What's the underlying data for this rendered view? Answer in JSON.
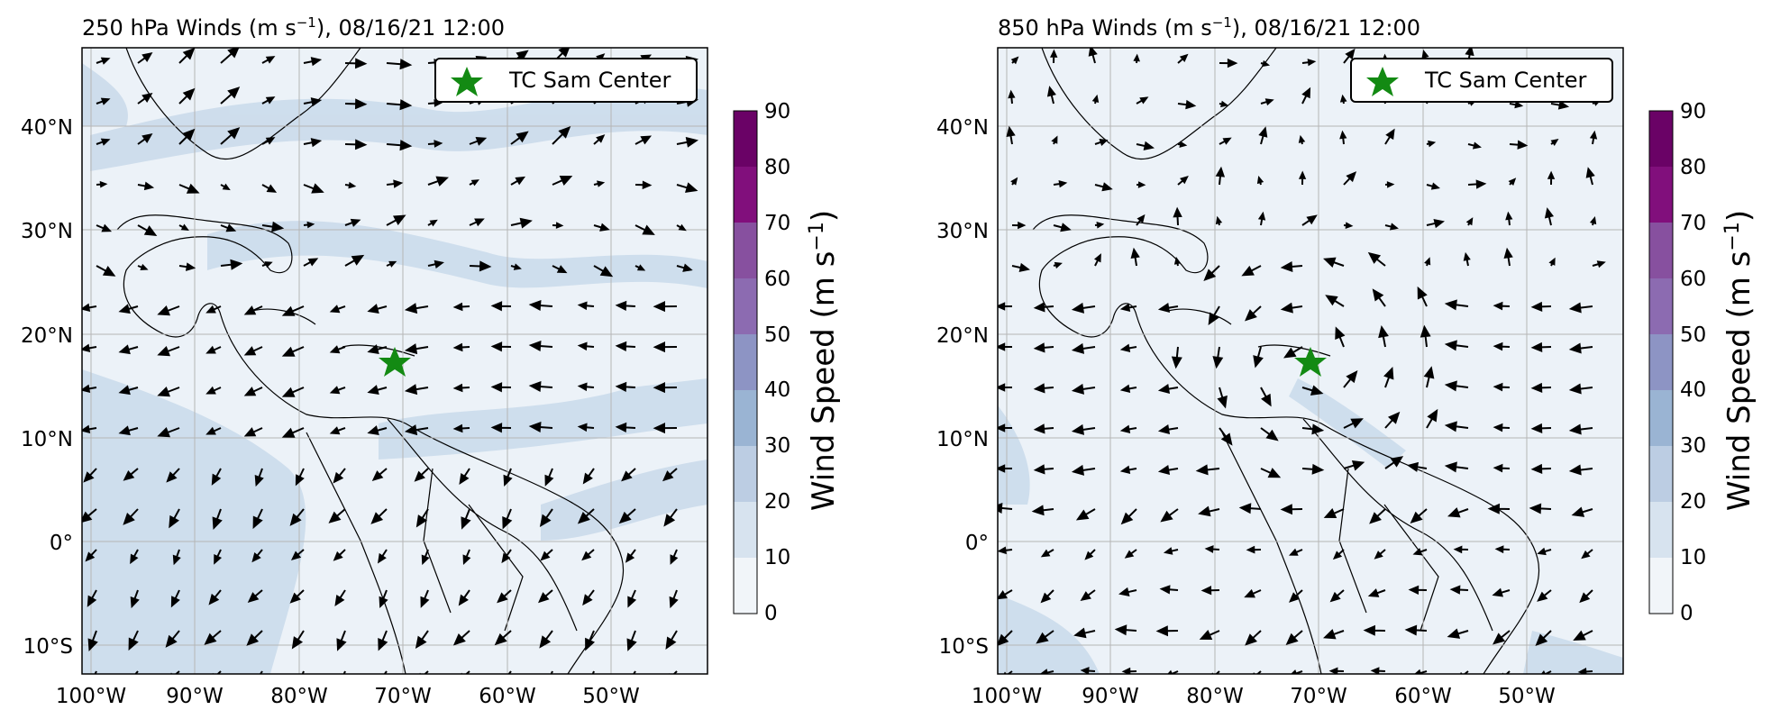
{
  "panels": [
    {
      "id": "upper",
      "title_prefix": "250 hPa Winds (m s",
      "title_sup": "−1",
      "title_suffix": "), 08/16/21 12:00",
      "level": "250 hPa",
      "legend_label": "TC Sam Center",
      "center": {
        "lon": -71,
        "lat": 17.5
      },
      "colorbar_label_main": "Wind Speed (m s",
      "colorbar_label_sup": "−1",
      "colorbar_label_end": ")"
    },
    {
      "id": "lower",
      "title_prefix": "850 hPa Winds (m s",
      "title_sup": "−1",
      "title_suffix": "), 08/16/21 12:00",
      "level": "850 hPa",
      "legend_label": "TC Sam Center",
      "center": {
        "lon": -71,
        "lat": 17.5
      },
      "colorbar_label_main": "Wind Speed (m s",
      "colorbar_label_sup": "−1",
      "colorbar_label_end": ")"
    }
  ],
  "lon_ticks": [
    "100°W",
    "90°W",
    "80°W",
    "70°W",
    "60°W",
    "50°W"
  ],
  "lat_ticks": [
    "40°N",
    "30°N",
    "20°N",
    "10°N",
    "0°",
    "10°S"
  ],
  "colorbar_ticks": [
    "90",
    "80",
    "70",
    "60",
    "50",
    "40",
    "30",
    "20",
    "10",
    "0"
  ],
  "colors": {
    "cb_bins": [
      "#f1f5f9",
      "#d7e3ef",
      "#bccde3",
      "#9ab4d3",
      "#8d94c4",
      "#8c6bb1",
      "#87509f",
      "#810f7c",
      "#6a0266"
    ],
    "ocean": "#ecf2f8",
    "band": "#cbdbeb",
    "star": "#138a13",
    "grid": "#b5b5b5"
  }
}
